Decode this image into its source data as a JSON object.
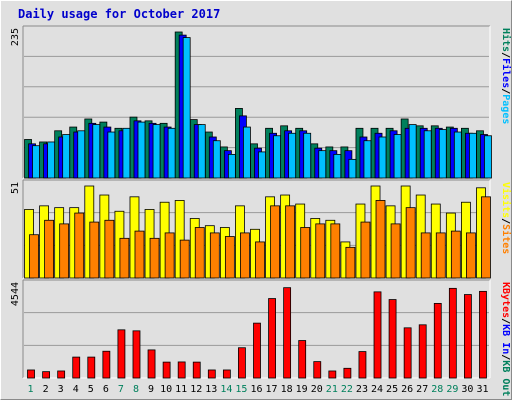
{
  "chart_data": {
    "type": "bar",
    "title": "Daily usage for October 2017",
    "colors": {
      "hits": "#00805c",
      "files": "#0000ff",
      "pages": "#00c0ff",
      "visits": "#ffff00",
      "sites": "#ff8000",
      "kbf": "#ff0000",
      "kbin": "#0000ff",
      "kbout": "#00805c",
      "weekend_label": "#00805c",
      "weekday_label": "#000000"
    },
    "days": [
      "1",
      "2",
      "3",
      "4",
      "5",
      "6",
      "7",
      "8",
      "9",
      "10",
      "11",
      "12",
      "13",
      "14",
      "15",
      "16",
      "17",
      "18",
      "19",
      "20",
      "21",
      "22",
      "23",
      "24",
      "25",
      "26",
      "27",
      "28",
      "29",
      "30",
      "31"
    ],
    "weekend_days": [
      "1",
      "7",
      "8",
      "14",
      "15",
      "21",
      "22",
      "28",
      "29"
    ],
    "panels": [
      {
        "id": "hits-files-pages",
        "ytick": "235",
        "ymax": 235,
        "legend": [
          {
            "text": "Hits",
            "color_key": "hits"
          },
          {
            "text": "/",
            "color_key": "sep"
          },
          {
            "text": "Files",
            "color_key": "files"
          },
          {
            "text": "/",
            "color_key": "sep"
          },
          {
            "text": "Pages",
            "color_key": "pages"
          }
        ],
        "series": [
          {
            "name": "Hits",
            "color_key": "hits",
            "values": [
              62,
              58,
              76,
              82,
              95,
              90,
              80,
              98,
              92,
              88,
              235,
              94,
              74,
              50,
              112,
              55,
              80,
              84,
              80,
              55,
              50,
              50,
              80,
              80,
              80,
              95,
              84,
              84,
              82,
              80,
              76
            ]
          },
          {
            "name": "Files",
            "color_key": "files",
            "values": [
              55,
              55,
              66,
              74,
              88,
              82,
              76,
              92,
              88,
              82,
              230,
              86,
              66,
              44,
              100,
              48,
              72,
              76,
              76,
              48,
              44,
              44,
              66,
              72,
              76,
              80,
              80,
              80,
              80,
              72,
              70
            ]
          },
          {
            "name": "Pages",
            "color_key": "pages",
            "values": [
              52,
              58,
              70,
              76,
              86,
              74,
              80,
              90,
              86,
              80,
              226,
              86,
              60,
              38,
              82,
              42,
              68,
              72,
              72,
              44,
              38,
              30,
              60,
              66,
              70,
              86,
              76,
              78,
              74,
              72,
              68
            ]
          }
        ]
      },
      {
        "id": "visits-sites",
        "ytick": "51",
        "ymax": 51,
        "legend": [
          {
            "text": "Visits",
            "color_key": "visits"
          },
          {
            "text": "/",
            "color_key": "sep"
          },
          {
            "text": "Sites",
            "color_key": "sites"
          }
        ],
        "series": [
          {
            "name": "Visits",
            "color_key": "visits",
            "values": [
              38,
              40,
              39,
              39,
              51,
              46,
              37,
              45,
              38,
              42,
              43,
              33,
              29,
              28,
              40,
              27,
              45,
              46,
              41,
              33,
              32,
              20,
              41,
              51,
              40,
              51,
              46,
              41,
              36,
              42,
              50
            ]
          },
          {
            "name": "Sites",
            "color_key": "sites",
            "values": [
              24,
              32,
              30,
              36,
              31,
              32,
              22,
              26,
              22,
              25,
              21,
              28,
              25,
              23,
              25,
              20,
              40,
              40,
              28,
              30,
              30,
              17,
              31,
              43,
              30,
              39,
              25,
              25,
              26,
              25,
              45
            ]
          }
        ]
      },
      {
        "id": "kbytes",
        "ytick": "4544",
        "ymax": 5500,
        "legend": [
          {
            "text": "KBytes",
            "color_key": "kbf"
          },
          {
            "text": "/",
            "color_key": "sep"
          },
          {
            "text": "KB In",
            "color_key": "kbin"
          },
          {
            "text": "/",
            "color_key": "sep"
          },
          {
            "text": "KB Out",
            "color_key": "kbout"
          }
        ],
        "series": [
          {
            "name": "KBytes",
            "color_key": "kbf",
            "values": [
              480,
              380,
              420,
              1250,
              1250,
              1600,
              2880,
              2820,
              1680,
              950,
              960,
              950,
              480,
              480,
              1810,
              3280,
              4750,
              5400,
              2240,
              980,
              420,
              580,
              1580,
              5150,
              4690,
              3000,
              3180,
              4460,
              5360,
              4990,
              5180
            ]
          }
        ]
      }
    ]
  }
}
